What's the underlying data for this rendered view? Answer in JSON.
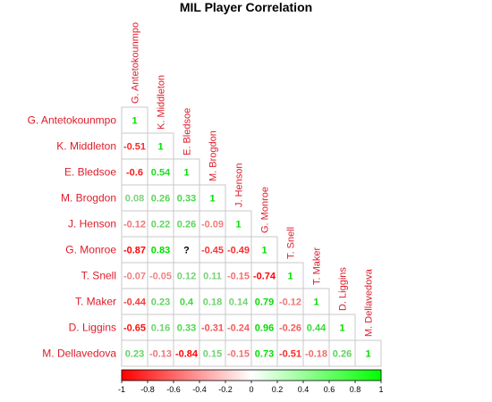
{
  "chart_data": {
    "type": "heatmap",
    "title": "MIL Player Correlation",
    "row_labels": [
      "G. Antetokounmpo",
      "K. Middleton",
      "E. Bledsoe",
      "M. Brogdon",
      "J. Henson",
      "G. Monroe",
      "T. Snell",
      "T. Maker",
      "D. Liggins",
      "M. Dellavedova"
    ],
    "col_labels": [
      "G. Antetokounmpo",
      "K. Middleton",
      "E. Bledsoe",
      "M. Brogdon",
      "J. Henson",
      "G. Monroe",
      "T. Snell",
      "T. Maker",
      "D. Liggins",
      "M. Dellavedova"
    ],
    "matrix": [
      [
        1
      ],
      [
        -0.51,
        1
      ],
      [
        -0.6,
        0.54,
        1
      ],
      [
        0.08,
        0.26,
        0.33,
        1
      ],
      [
        -0.12,
        0.22,
        0.26,
        -0.09,
        1
      ],
      [
        -0.87,
        0.83,
        null,
        -0.45,
        -0.49,
        1
      ],
      [
        -0.07,
        -0.05,
        0.12,
        0.11,
        -0.15,
        -0.74,
        1
      ],
      [
        -0.44,
        0.23,
        0.4,
        0.18,
        0.14,
        0.79,
        -0.12,
        1
      ],
      [
        -0.65,
        0.16,
        0.33,
        -0.31,
        -0.24,
        0.96,
        -0.26,
        0.44,
        1
      ],
      [
        0.23,
        -0.13,
        -0.84,
        0.15,
        -0.15,
        0.73,
        -0.51,
        -0.18,
        0.26,
        1
      ]
    ],
    "missing_label": "?",
    "color_scale": {
      "low": "#ff0000",
      "mid": "#ffffff",
      "high": "#00ff00",
      "range": [
        -1,
        1
      ]
    },
    "colorbar_ticks": [
      "-1",
      "-0.8",
      "-0.6",
      "-0.4",
      "-0.2",
      "0",
      "0.2",
      "0.4",
      "0.6",
      "0.8",
      "1"
    ],
    "label_color": "#dd1c2a",
    "grid_color": "#c8c8c8",
    "layout": "lower-triangle"
  }
}
